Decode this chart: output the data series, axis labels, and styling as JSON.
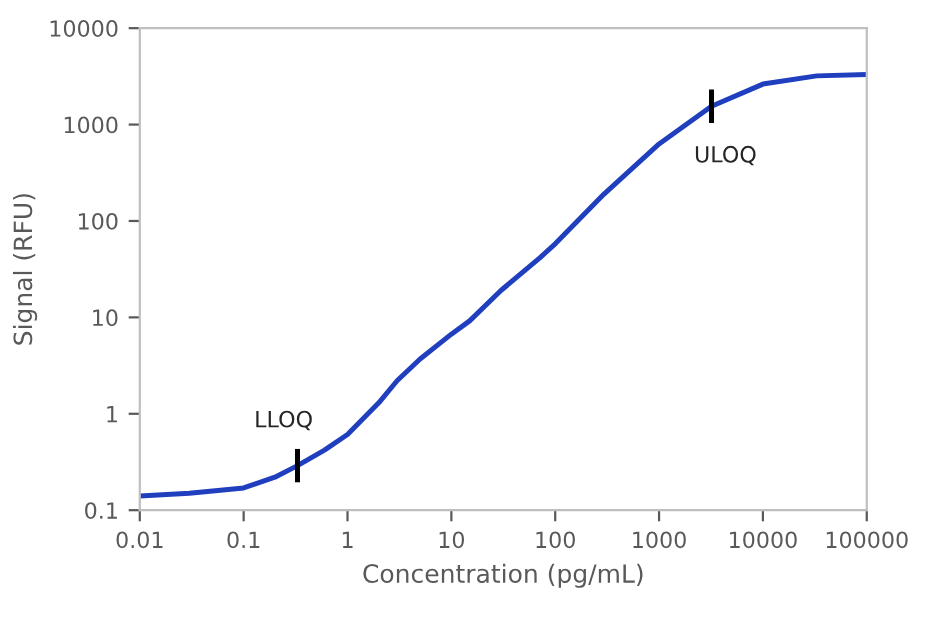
{
  "chart_data": {
    "type": "line",
    "xlabel": "Concentration (pg/mL)",
    "ylabel": "Signal (RFU)",
    "log": "xy",
    "grid": false,
    "legend": false,
    "marker": "none",
    "line_style": "solid",
    "xlim": [
      0.01,
      100000
    ],
    "ylim": [
      0.1,
      10000
    ],
    "xticks": [
      {
        "value": 0.01,
        "label": "0.01"
      },
      {
        "value": 0.1,
        "label": "0.1"
      },
      1,
      10,
      100,
      1000,
      10000,
      100000
    ],
    "yticks": [
      {
        "value": 0.1,
        "label": "0.1"
      },
      1,
      10,
      100,
      1000,
      10000
    ],
    "series": [
      {
        "color": "#1f3fbf",
        "x": [
          0.01,
          0.03,
          0.1,
          0.2,
          0.33,
          0.6,
          1,
          2,
          3,
          5,
          10,
          15,
          30,
          72,
          100,
          295,
          1000,
          3200,
          10000,
          33000,
          100000
        ],
        "values": [
          0.14,
          0.15,
          0.17,
          0.22,
          0.29,
          0.42,
          0.61,
          1.3,
          2.2,
          3.7,
          6.7,
          9.2,
          19,
          42,
          58,
          190,
          630,
          1550,
          2630,
          3200,
          3300
        ]
      }
    ],
    "annotations": [
      {
        "text": "LLOQ",
        "x": 0.33,
        "y": 0.29
      },
      {
        "text": "ULOQ",
        "x": 3200,
        "y": 1550
      }
    ]
  }
}
